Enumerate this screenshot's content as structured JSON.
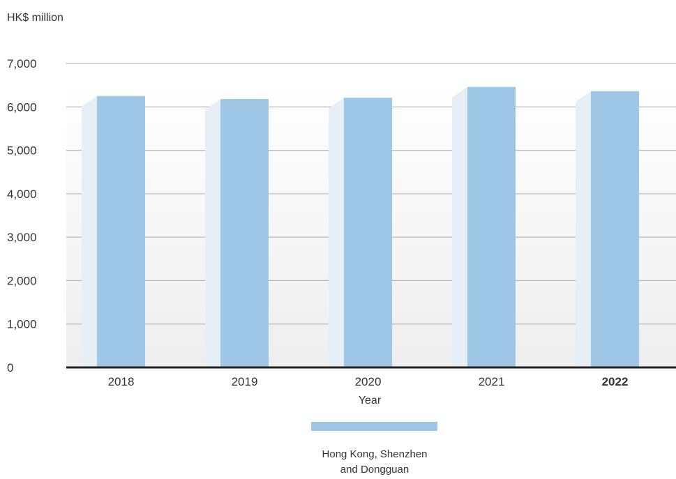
{
  "chart_data": {
    "type": "bar",
    "unit_label": "HK$ million",
    "xlabel": "Year",
    "ylabel": "",
    "categories": [
      "2018",
      "2019",
      "2020",
      "2021",
      "2022"
    ],
    "highlight_category": "2022",
    "series": [
      {
        "name": "Hong Kong, Shenzhen and Dongguan",
        "values": [
          6250,
          6180,
          6210,
          6460,
          6360
        ],
        "color": "#9dc6e7"
      }
    ],
    "ylim": [
      0,
      7000
    ],
    "yticks": [
      0,
      1000,
      2000,
      3000,
      4000,
      5000,
      6000,
      7000
    ],
    "ytick_labels": [
      "0",
      "1,000",
      "2,000",
      "3,000",
      "4,000",
      "5,000",
      "6,000",
      "7,000"
    ],
    "grid": true,
    "legend": {
      "position": "bottom-center",
      "lines": [
        "Hong Kong, Shenzhen",
        "and Dongguan"
      ]
    },
    "colors": {
      "bar": "#9dc6e7",
      "bar_shadow": "#e6eff6",
      "grid": "#aaaaaa",
      "baseline": "#222222",
      "text": "#333333"
    }
  }
}
